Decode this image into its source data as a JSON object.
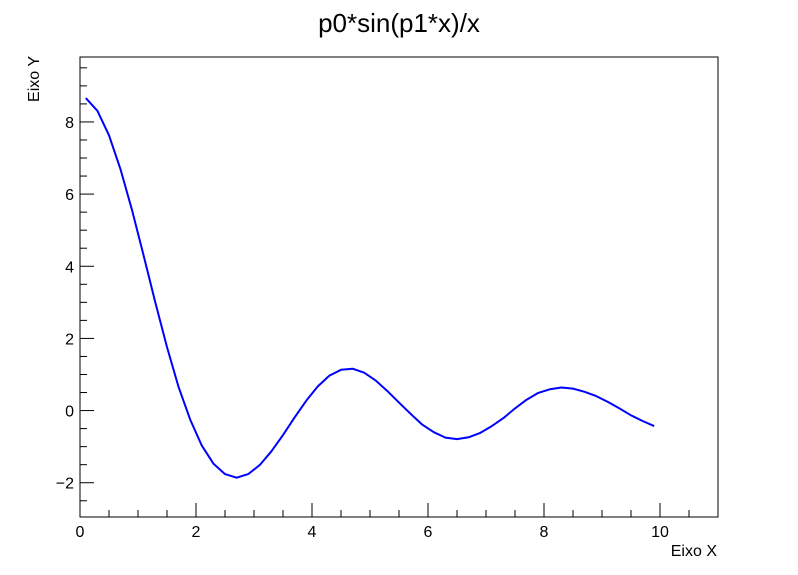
{
  "chart_data": {
    "type": "line",
    "title": "p0*sin(p1*x)/x",
    "xlabel": "Eixo X",
    "ylabel": "Eixo Y",
    "xlim": [
      0,
      11
    ],
    "ylim": [
      -2.95,
      9.8
    ],
    "xticks": [
      0,
      2,
      4,
      6,
      8,
      10
    ],
    "yticks": [
      -2,
      0,
      2,
      4,
      6,
      8
    ],
    "xtick_labels": [
      "0",
      "2",
      "4",
      "6",
      "8",
      "10"
    ],
    "ytick_labels": [
      "−2",
      "0",
      "2",
      "4",
      "6",
      "8"
    ],
    "grid": false,
    "series": [
      {
        "color": "#0000ff",
        "x": [
          0.1,
          0.3,
          0.5,
          0.7,
          0.9,
          1.1,
          1.3,
          1.5,
          1.7,
          1.9,
          2.1,
          2.3,
          2.5,
          2.7,
          2.9,
          3.1,
          3.3,
          3.5,
          3.7,
          3.9,
          4.1,
          4.3,
          4.5,
          4.7,
          4.9,
          5.1,
          5.3,
          5.5,
          5.7,
          5.9,
          6.1,
          6.3,
          6.5,
          6.7,
          6.9,
          7.1,
          7.3,
          7.5,
          7.7,
          7.9,
          8.1,
          8.3,
          8.5,
          8.7,
          8.9,
          9.1,
          9.3,
          9.5,
          9.7,
          9.9
        ],
        "y": [
          8.66,
          8.31,
          7.63,
          6.68,
          5.54,
          4.28,
          2.99,
          1.76,
          0.65,
          -0.25,
          -0.97,
          -1.47,
          -1.76,
          -1.86,
          -1.76,
          -1.51,
          -1.13,
          -0.68,
          -0.19,
          0.27,
          0.67,
          0.97,
          1.13,
          1.16,
          1.05,
          0.83,
          0.54,
          0.22,
          -0.09,
          -0.39,
          -0.6,
          -0.75,
          -0.79,
          -0.74,
          -0.62,
          -0.43,
          -0.21,
          0.06,
          0.3,
          0.49,
          0.59,
          0.64,
          0.61,
          0.52,
          0.4,
          0.24,
          0.06,
          -0.13,
          -0.29,
          -0.43
        ]
      }
    ]
  }
}
